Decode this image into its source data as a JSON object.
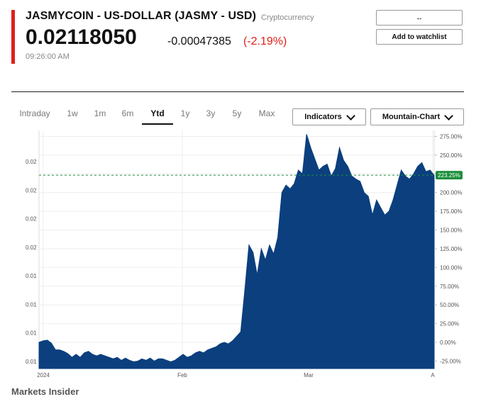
{
  "header": {
    "title": "JASMYCOIN - US-DOLLAR (JASMY - USD)",
    "category": "Cryptocurrency",
    "price": "0.02118050",
    "change": "-0.00047385",
    "change_pct": "(-2.19%)",
    "time": "09:26:00 AM",
    "accent_color": "#e0201b"
  },
  "buttons": {
    "compare_label": "↔",
    "watchlist_label": "Add to watchlist"
  },
  "range_tabs": [
    {
      "label": "Intraday",
      "active": false
    },
    {
      "label": "1w",
      "active": false
    },
    {
      "label": "1m",
      "active": false
    },
    {
      "label": "6m",
      "active": false
    },
    {
      "label": "Ytd",
      "active": true
    },
    {
      "label": "1y",
      "active": false
    },
    {
      "label": "3y",
      "active": false
    },
    {
      "label": "5y",
      "active": false
    },
    {
      "label": "Max",
      "active": false
    }
  ],
  "dropdowns": {
    "indicators_label": "Indicators",
    "chart_type_label": "Mountain-Chart",
    "chevron_icon": "chevron-down-icon"
  },
  "chart_data": {
    "type": "area",
    "fill_color": "#0b3f7e",
    "marker_color": "#1c8f3c",
    "left_axis_labels": [
      "0.02",
      "0.02",
      "0.02",
      "0.02",
      "0.01",
      "0.01",
      "0.01",
      "0.01"
    ],
    "right_axis_labels": [
      "275.00%",
      "250.00%",
      "225.00%",
      "200.00%",
      "175.00%",
      "150.00%",
      "125.00%",
      "100.00%",
      "75.00%",
      "50.00%",
      "25.00%",
      "0.00%",
      "-25.00%"
    ],
    "right_axis_values": [
      275,
      250,
      225,
      200,
      175,
      150,
      125,
      100,
      75,
      50,
      25,
      0,
      -25
    ],
    "x_labels": [
      "2024",
      "Feb",
      "Mar",
      "A"
    ],
    "current_value": 223.25,
    "current_label": "223.25%",
    "ylim": [
      -35,
      283
    ],
    "grid": true,
    "values": [
      0,
      2,
      3,
      -1,
      -10,
      -10,
      -12,
      -15,
      -20,
      -16,
      -20,
      -14,
      -12,
      -16,
      -18,
      -16,
      -18,
      -20,
      -22,
      -20,
      -24,
      -21,
      -24,
      -26,
      -25,
      -22,
      -24,
      -21,
      -25,
      -22,
      -22,
      -24,
      -26,
      -24,
      -20,
      -16,
      -20,
      -18,
      -14,
      -12,
      -14,
      -10,
      -8,
      -6,
      -2,
      0,
      -2,
      2,
      8,
      14,
      70,
      130,
      120,
      90,
      125,
      110,
      130,
      118,
      140,
      200,
      210,
      205,
      212,
      230,
      225,
      278,
      260,
      245,
      230,
      235,
      238,
      222,
      232,
      260,
      243,
      235,
      222,
      218,
      215,
      200,
      195,
      170,
      190,
      180,
      170,
      175,
      190,
      210,
      230,
      222,
      218,
      225,
      235,
      240,
      228,
      230,
      223
    ]
  },
  "footer": {
    "source": "Markets Insider"
  }
}
